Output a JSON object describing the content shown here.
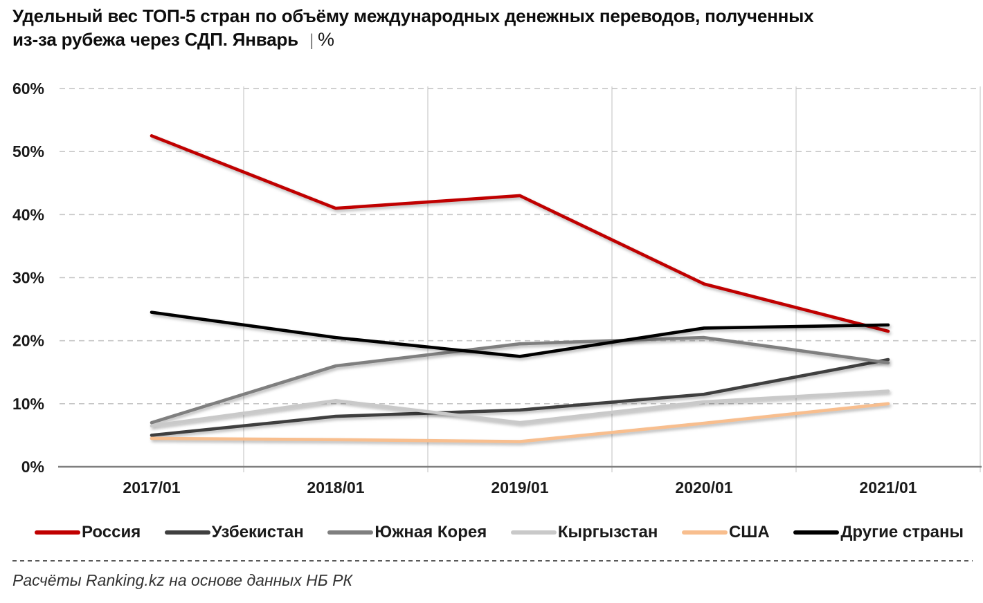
{
  "title": {
    "line1": "Удельный вес ТОП-5 стран по объёму международных денежных переводов, полученных",
    "line2": "из-за рубежа через СДП. Январь",
    "separator": "|",
    "unit": "%"
  },
  "chart_data": {
    "type": "line",
    "title": "Удельный вес ТОП-5 стран по объёму международных денежных переводов, полученных из-за рубежа через СДП. Январь, %",
    "categories": [
      "2017/01",
      "2018/01",
      "2019/01",
      "2020/01",
      "2021/01"
    ],
    "series": [
      {
        "name": "Россия",
        "color": "#C00000",
        "values": [
          52.5,
          41.0,
          43.0,
          29.0,
          21.5
        ]
      },
      {
        "name": "Узбекистан",
        "color": "#3F3F3F",
        "values": [
          5.0,
          8.0,
          9.0,
          11.5,
          17.0
        ]
      },
      {
        "name": "Южная Корея",
        "color": "#7F7F7F",
        "values": [
          7.0,
          16.0,
          19.5,
          20.5,
          16.5
        ]
      },
      {
        "name": "Кыргызстан",
        "color": "#C9C9C9",
        "values": [
          6.5,
          10.5,
          7.0,
          10.3,
          12.0
        ]
      },
      {
        "name": "США",
        "color": "#F8BE8E",
        "values": [
          4.5,
          4.3,
          4.0,
          6.9,
          10.0
        ]
      },
      {
        "name": "Другие страны",
        "color": "#000000",
        "values": [
          24.5,
          20.5,
          17.5,
          22.0,
          22.5
        ]
      }
    ],
    "xlabel": "",
    "ylabel": "",
    "ylim": [
      0,
      60
    ],
    "y_ticks": [
      {
        "label": "60%",
        "value": 60
      },
      {
        "label": "50%",
        "value": 50
      },
      {
        "label": "40%",
        "value": 40
      },
      {
        "label": "30%",
        "value": 30
      },
      {
        "label": "20%",
        "value": 20
      },
      {
        "label": "10%",
        "value": 10
      },
      {
        "label": "0%",
        "value": 0
      }
    ],
    "grid": "horizontal dashed gridlines, vertical category-boundary lines",
    "legend_position": "bottom"
  },
  "footer": {
    "source": "Расчёты Ranking.kz на основе данных НБ РК"
  }
}
